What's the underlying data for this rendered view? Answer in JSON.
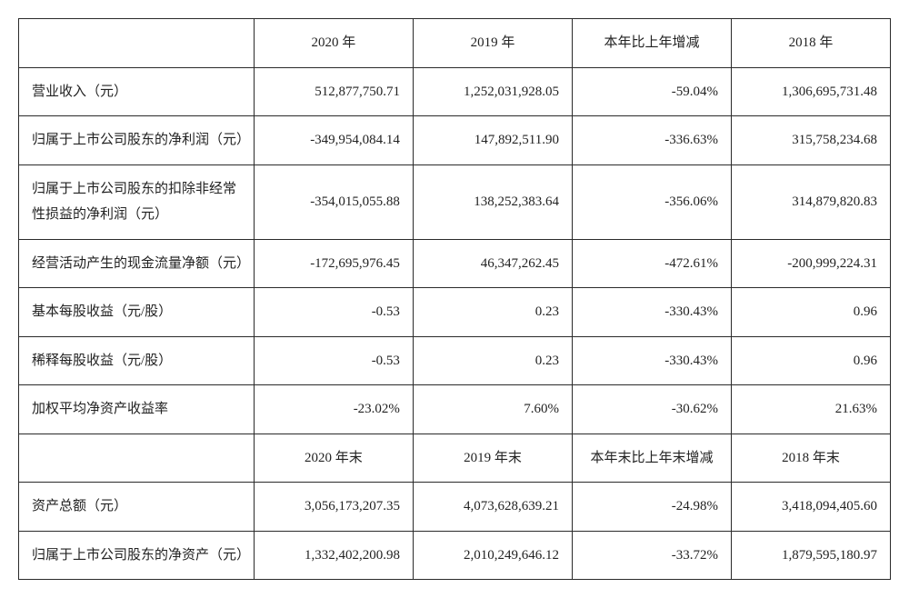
{
  "table": {
    "border_color": "#2a2a2a",
    "background_color": "#ffffff",
    "text_color": "#222222",
    "font_size_pt": 11,
    "header1": [
      "",
      "2020 年",
      "2019 年",
      "本年比上年增减",
      "2018 年"
    ],
    "rows1": [
      {
        "label": "营业收入（元）",
        "c2020": "512,877,750.71",
        "c2019": "1,252,031,928.05",
        "chg": "-59.04%",
        "c2018": "1,306,695,731.48"
      },
      {
        "label": "归属于上市公司股东的净利润（元）",
        "c2020": "-349,954,084.14",
        "c2019": "147,892,511.90",
        "chg": "-336.63%",
        "c2018": "315,758,234.68"
      },
      {
        "label": "归属于上市公司股东的扣除非经常性损益的净利润（元）",
        "c2020": "-354,015,055.88",
        "c2019": "138,252,383.64",
        "chg": "-356.06%",
        "c2018": "314,879,820.83"
      },
      {
        "label": "经营活动产生的现金流量净额（元）",
        "c2020": "-172,695,976.45",
        "c2019": "46,347,262.45",
        "chg": "-472.61%",
        "c2018": "-200,999,224.31"
      },
      {
        "label": "基本每股收益（元/股）",
        "c2020": "-0.53",
        "c2019": "0.23",
        "chg": "-330.43%",
        "c2018": "0.96"
      },
      {
        "label": "稀释每股收益（元/股）",
        "c2020": "-0.53",
        "c2019": "0.23",
        "chg": "-330.43%",
        "c2018": "0.96"
      },
      {
        "label": "加权平均净资产收益率",
        "c2020": "-23.02%",
        "c2019": "7.60%",
        "chg": "-30.62%",
        "c2018": "21.63%"
      }
    ],
    "header2": [
      "",
      "2020 年末",
      "2019 年末",
      "本年末比上年末增减",
      "2018 年末"
    ],
    "rows2": [
      {
        "label": "资产总额（元）",
        "c2020": "3,056,173,207.35",
        "c2019": "4,073,628,639.21",
        "chg": "-24.98%",
        "c2018": "3,418,094,405.60"
      },
      {
        "label": "归属于上市公司股东的净资产（元）",
        "c2020": "1,332,402,200.98",
        "c2019": "2,010,249,646.12",
        "chg": "-33.72%",
        "c2018": "1,879,595,180.97"
      }
    ]
  }
}
